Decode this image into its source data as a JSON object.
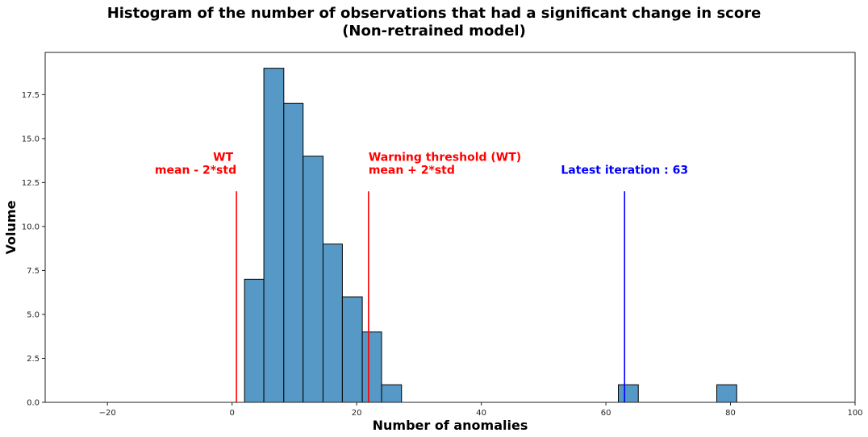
{
  "chart_data": {
    "type": "bar",
    "title": [
      "Histogram of the number of observations that had a significant change in score",
      "(Non-retrained model)"
    ],
    "xlabel": "Number of anomalies",
    "ylabel": "Volume",
    "xlim": [
      -30,
      100
    ],
    "ylim": [
      0,
      19.9
    ],
    "xticks": [
      -20,
      0,
      20,
      40,
      60,
      80,
      100
    ],
    "xtick_labels": [
      "−20",
      "0",
      "20",
      "40",
      "60",
      "80",
      "100"
    ],
    "yticks": [
      0,
      2.5,
      5,
      7.5,
      10,
      12.5,
      15,
      17.5
    ],
    "ytick_labels": [
      "0.0",
      "2.5",
      "5.0",
      "7.5",
      "10.0",
      "12.5",
      "15.0",
      "17.5"
    ],
    "grid": false,
    "bar_color": "#5799c6",
    "bins": [
      {
        "x0": 2.0,
        "x1": 5.1,
        "count": 7
      },
      {
        "x0": 5.1,
        "x1": 8.3,
        "count": 19
      },
      {
        "x0": 8.3,
        "x1": 11.4,
        "count": 17
      },
      {
        "x0": 11.4,
        "x1": 14.6,
        "count": 14
      },
      {
        "x0": 14.6,
        "x1": 17.7,
        "count": 9
      },
      {
        "x0": 17.7,
        "x1": 20.9,
        "count": 6
      },
      {
        "x0": 20.9,
        "x1": 24.0,
        "count": 4
      },
      {
        "x0": 24.0,
        "x1": 27.2,
        "count": 1
      },
      {
        "x0": 62.0,
        "x1": 65.2,
        "count": 1
      },
      {
        "x0": 77.8,
        "x1": 81.0,
        "count": 1
      }
    ],
    "vlines": [
      {
        "x": 0.7,
        "ymax": 12,
        "color": "#ff0000",
        "label_lines": [
          "WT",
          "mean - 2*std"
        ],
        "align": "end"
      },
      {
        "x": 21.9,
        "ymax": 12,
        "color": "#ff0000",
        "label_lines": [
          "Warning threshold (WT)",
          " mean + 2*std"
        ],
        "align": "start"
      },
      {
        "x": 63,
        "ymax": 12,
        "color": "#0000ff",
        "label_lines": [
          "Latest iteration : 63"
        ],
        "align": "middle"
      }
    ]
  }
}
